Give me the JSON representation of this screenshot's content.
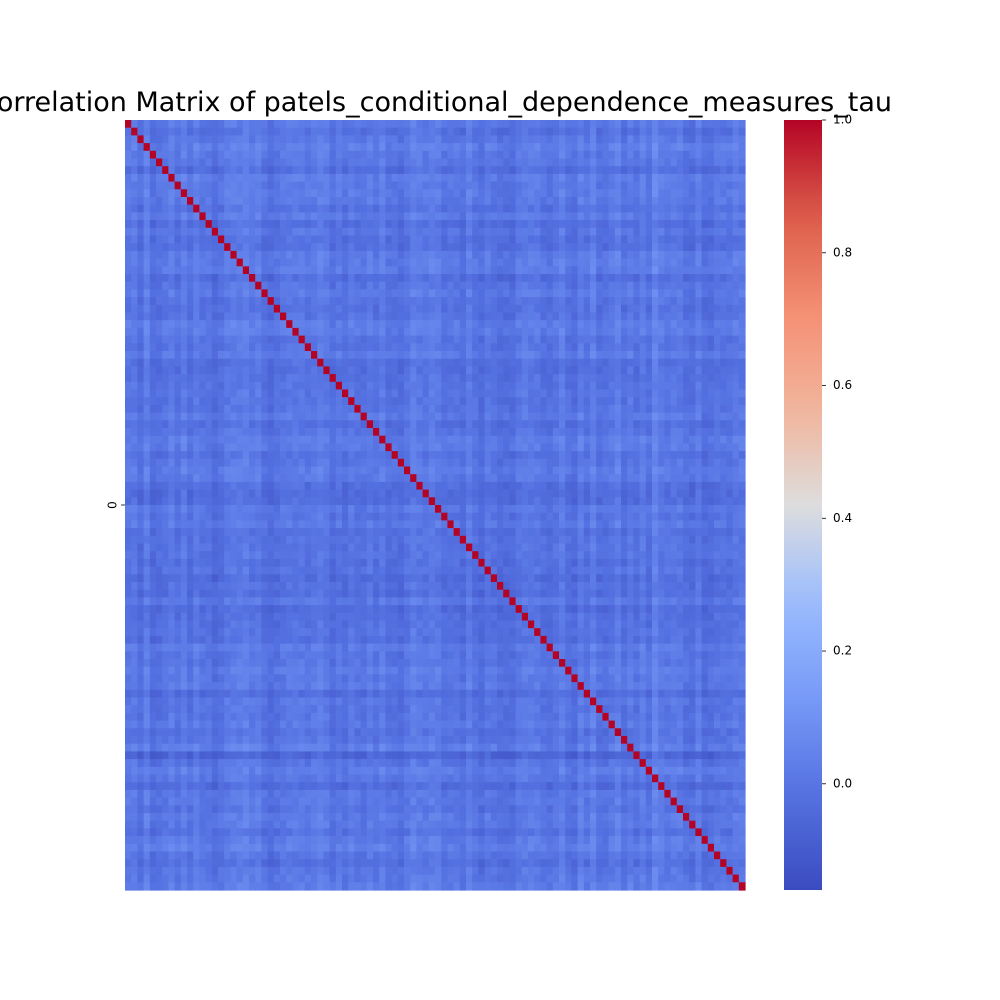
{
  "chart_data": {
    "type": "heatmap",
    "title": "Correlation Matrix of patels_conditional_dependence_measures_tau",
    "xlabel": "",
    "ylabel": "",
    "matrix_size": 100,
    "x_tick_labels": [],
    "y_tick_labels": [
      "0"
    ],
    "diagonal_value": 1.0,
    "off_diagonal_range": [
      -0.16,
      0.15
    ],
    "off_diagonal_typical": 0.0,
    "colormap": "coolwarm",
    "colorbar": {
      "vmin": -0.16,
      "vmax": 1.0,
      "ticks": [
        0.0,
        0.2,
        0.4,
        0.6,
        0.8,
        1.0
      ],
      "tick_labels": [
        "0.0",
        "0.2",
        "0.4",
        "0.6",
        "0.8",
        "1.0"
      ]
    },
    "colors": {
      "low": "#3b4cc0",
      "mid": "#dddddd",
      "high": "#b40426"
    }
  }
}
